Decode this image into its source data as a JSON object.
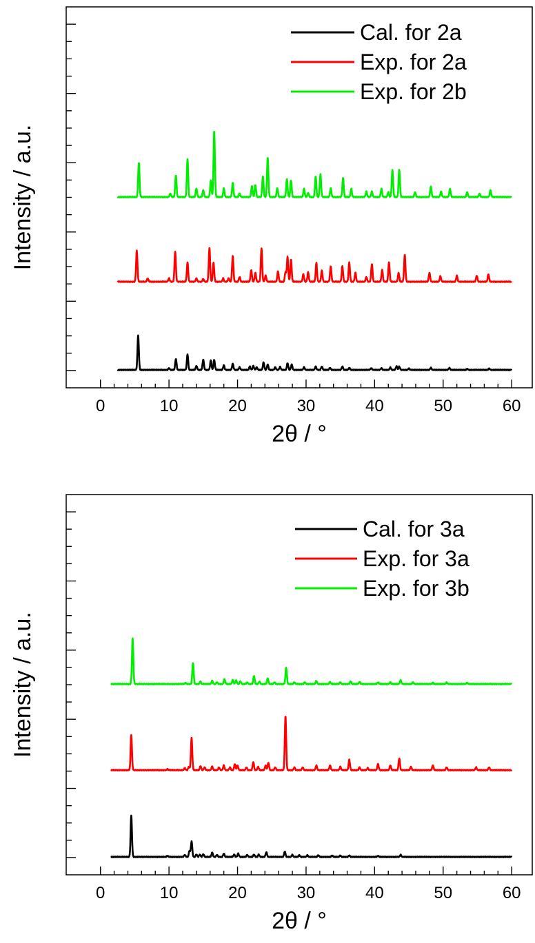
{
  "chart_data": [
    {
      "type": "line",
      "title": "",
      "xlabel": "2θ / °",
      "ylabel": "Intensity / a.u.",
      "xlim": [
        -5,
        63
      ],
      "xticks": [
        "0",
        "10",
        "20",
        "30",
        "40",
        "50",
        "60"
      ],
      "grid": false,
      "legend_position": "top-right",
      "series": [
        {
          "name": "Cal. for 2a",
          "color": "#000000",
          "offset": 0,
          "peaks": [
            [
              5.5,
              100
            ],
            [
              10.0,
              5
            ],
            [
              11.0,
              32
            ],
            [
              12.7,
              45
            ],
            [
              14.0,
              12
            ],
            [
              15.0,
              30
            ],
            [
              16.1,
              28
            ],
            [
              16.6,
              29
            ],
            [
              18.0,
              14
            ],
            [
              19.3,
              18
            ],
            [
              20.3,
              8
            ],
            [
              21.8,
              10
            ],
            [
              22.3,
              12
            ],
            [
              22.8,
              8
            ],
            [
              23.8,
              22
            ],
            [
              24.4,
              16
            ],
            [
              25.5,
              8
            ],
            [
              26.2,
              9
            ],
            [
              27.3,
              20
            ],
            [
              27.9,
              16
            ],
            [
              29.7,
              8
            ],
            [
              31.4,
              10
            ],
            [
              32.3,
              10
            ],
            [
              33.5,
              6
            ],
            [
              35.3,
              10
            ],
            [
              36.3,
              6
            ],
            [
              39.5,
              5
            ],
            [
              41.0,
              5
            ],
            [
              42.3,
              7
            ],
            [
              43.2,
              11
            ],
            [
              43.6,
              10
            ],
            [
              45.0,
              4
            ],
            [
              48.2,
              6
            ],
            [
              50.9,
              6
            ],
            [
              53.5,
              3
            ],
            [
              56.7,
              4
            ]
          ]
        },
        {
          "name": "Exp. for 2a",
          "color": "#ff0000",
          "offset": 125,
          "peaks": [
            [
              5.3,
              90
            ],
            [
              6.9,
              10
            ],
            [
              10.0,
              10
            ],
            [
              10.9,
              88
            ],
            [
              12.7,
              56
            ],
            [
              14.0,
              10
            ],
            [
              15.0,
              8
            ],
            [
              15.9,
              98
            ],
            [
              16.5,
              55
            ],
            [
              17.9,
              10
            ],
            [
              18.7,
              10
            ],
            [
              19.3,
              75
            ],
            [
              20.3,
              14
            ],
            [
              22.0,
              34
            ],
            [
              22.6,
              26
            ],
            [
              23.5,
              98
            ],
            [
              24.1,
              18
            ],
            [
              25.9,
              30
            ],
            [
              27.0,
              28
            ],
            [
              27.3,
              72
            ],
            [
              27.8,
              64
            ],
            [
              29.6,
              22
            ],
            [
              30.3,
              28
            ],
            [
              31.5,
              55
            ],
            [
              32.3,
              32
            ],
            [
              33.6,
              45
            ],
            [
              35.3,
              45
            ],
            [
              36.3,
              56
            ],
            [
              37.2,
              26
            ],
            [
              38.8,
              14
            ],
            [
              39.6,
              52
            ],
            [
              41.1,
              35
            ],
            [
              42.1,
              56
            ],
            [
              43.5,
              26
            ],
            [
              44.4,
              78
            ],
            [
              48.0,
              26
            ],
            [
              49.6,
              16
            ],
            [
              52.0,
              18
            ],
            [
              54.9,
              18
            ],
            [
              56.6,
              22
            ]
          ]
        },
        {
          "name": "Exp. for 2b",
          "color": "#00ee00",
          "offset": 250,
          "peaks": [
            [
              5.6,
              100
            ],
            [
              10.2,
              10
            ],
            [
              11.0,
              63
            ],
            [
              12.7,
              110
            ],
            [
              14.0,
              25
            ],
            [
              15.0,
              20
            ],
            [
              16.1,
              48
            ],
            [
              16.6,
              193
            ],
            [
              18.0,
              26
            ],
            [
              19.3,
              41
            ],
            [
              20.3,
              10
            ],
            [
              22.1,
              32
            ],
            [
              22.6,
              35
            ],
            [
              23.7,
              60
            ],
            [
              24.4,
              115
            ],
            [
              25.8,
              26
            ],
            [
              27.2,
              52
            ],
            [
              27.8,
              49
            ],
            [
              29.7,
              24
            ],
            [
              30.3,
              12
            ],
            [
              31.4,
              60
            ],
            [
              32.1,
              66
            ],
            [
              33.6,
              26
            ],
            [
              35.4,
              56
            ],
            [
              36.6,
              24
            ],
            [
              38.8,
              16
            ],
            [
              39.6,
              16
            ],
            [
              41.0,
              24
            ],
            [
              42.0,
              14
            ],
            [
              42.6,
              80
            ],
            [
              43.6,
              80
            ],
            [
              45.9,
              14
            ],
            [
              48.2,
              30
            ],
            [
              49.7,
              16
            ],
            [
              51.0,
              24
            ],
            [
              53.5,
              14
            ],
            [
              55.3,
              10
            ],
            [
              56.9,
              20
            ]
          ]
        }
      ]
    },
    {
      "type": "line",
      "title": "",
      "xlabel": "2θ / °",
      "ylabel": "Intensity / a.u.",
      "xlim": [
        -5,
        63
      ],
      "xticks": [
        "0",
        "10",
        "20",
        "30",
        "40",
        "50",
        "60"
      ],
      "grid": false,
      "legend_position": "top-right",
      "series": [
        {
          "name": "Cal. for 3a",
          "color": "#000000",
          "offset": 0,
          "peaks": [
            [
              4.5,
              120
            ],
            [
              9.8,
              3
            ],
            [
              12.3,
              6
            ],
            [
              13.0,
              18
            ],
            [
              13.3,
              45
            ],
            [
              14.0,
              7
            ],
            [
              14.5,
              7
            ],
            [
              15.0,
              8
            ],
            [
              16.3,
              13
            ],
            [
              17.0,
              6
            ],
            [
              18.0,
              10
            ],
            [
              19.5,
              7
            ],
            [
              20.1,
              10
            ],
            [
              21.4,
              6
            ],
            [
              22.4,
              7
            ],
            [
              23.1,
              7
            ],
            [
              24.2,
              14
            ],
            [
              26.9,
              16
            ],
            [
              28.0,
              6
            ],
            [
              29.0,
              5
            ],
            [
              30.2,
              5
            ],
            [
              31.8,
              5
            ],
            [
              33.8,
              4
            ],
            [
              35.0,
              4
            ],
            [
              36.3,
              4
            ],
            [
              40.5,
              3
            ],
            [
              43.8,
              6
            ]
          ]
        },
        {
          "name": "Exp. for 3a",
          "color": "#ff0000",
          "offset": 125,
          "peaks": [
            [
              4.5,
              102
            ],
            [
              9.8,
              3
            ],
            [
              12.3,
              6
            ],
            [
              12.9,
              10
            ],
            [
              13.3,
              94
            ],
            [
              14.6,
              12
            ],
            [
              15.2,
              8
            ],
            [
              16.3,
              11
            ],
            [
              17.3,
              8
            ],
            [
              18.0,
              14
            ],
            [
              18.9,
              8
            ],
            [
              19.6,
              18
            ],
            [
              20.0,
              14
            ],
            [
              21.3,
              8
            ],
            [
              22.3,
              24
            ],
            [
              23.0,
              10
            ],
            [
              24.1,
              14
            ],
            [
              24.5,
              22
            ],
            [
              25.5,
              8
            ],
            [
              27.0,
              158
            ],
            [
              28.3,
              8
            ],
            [
              29.5,
              8
            ],
            [
              31.5,
              14
            ],
            [
              33.5,
              14
            ],
            [
              35.0,
              10
            ],
            [
              36.3,
              30
            ],
            [
              37.8,
              8
            ],
            [
              39.0,
              6
            ],
            [
              40.5,
              18
            ],
            [
              42.3,
              14
            ],
            [
              43.6,
              34
            ],
            [
              45.3,
              10
            ],
            [
              48.5,
              14
            ],
            [
              50.5,
              8
            ],
            [
              54.8,
              8
            ],
            [
              56.7,
              8
            ]
          ]
        },
        {
          "name": "Exp. for 3b",
          "color": "#00ee00",
          "offset": 255,
          "peaks": [
            [
              4.7,
              132
            ],
            [
              12.4,
              3
            ],
            [
              13.5,
              62
            ],
            [
              14.6,
              7
            ],
            [
              16.3,
              10
            ],
            [
              17.0,
              5
            ],
            [
              18.1,
              14
            ],
            [
              19.3,
              12
            ],
            [
              19.8,
              11
            ],
            [
              20.4,
              8
            ],
            [
              21.4,
              5
            ],
            [
              22.4,
              24
            ],
            [
              23.2,
              7
            ],
            [
              24.4,
              17
            ],
            [
              25.4,
              5
            ],
            [
              27.1,
              48
            ],
            [
              28.3,
              5
            ],
            [
              29.8,
              5
            ],
            [
              31.5,
              9
            ],
            [
              33.5,
              6
            ],
            [
              35.0,
              5
            ],
            [
              36.5,
              8
            ],
            [
              37.8,
              6
            ],
            [
              40.5,
              5
            ],
            [
              42.3,
              5
            ],
            [
              43.8,
              11
            ],
            [
              45.6,
              5
            ],
            [
              48.5,
              4
            ],
            [
              50.5,
              4
            ],
            [
              53.5,
              3
            ]
          ]
        }
      ]
    }
  ]
}
